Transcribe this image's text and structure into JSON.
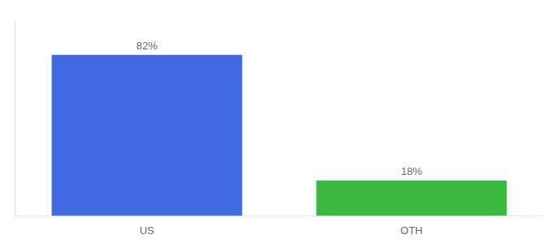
{
  "chart_data": {
    "type": "bar",
    "categories": [
      "US",
      "OTH"
    ],
    "values": [
      82,
      18
    ],
    "value_labels": [
      "82%",
      "18%"
    ],
    "colors": [
      "#4169E1",
      "#3CB940"
    ],
    "data_labels": true,
    "ylim": [
      0,
      100
    ],
    "grid": false,
    "tick_labels": "x"
  }
}
